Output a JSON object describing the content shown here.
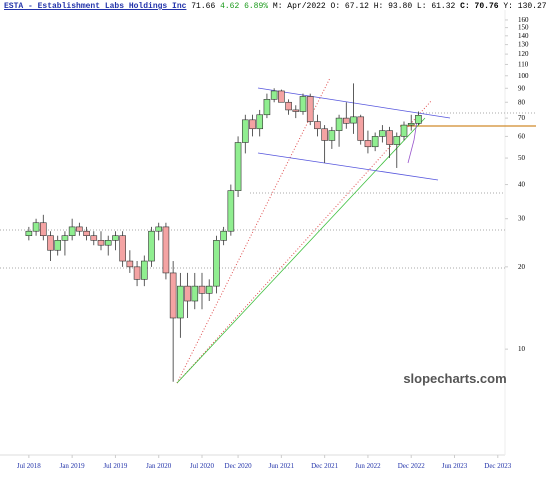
{
  "chart_data": {
    "type": "candlestick",
    "title": "ESTA - Establishment Labs Holdings Inc",
    "price": "71.66",
    "change": "4.62 6.89%",
    "ohlc": "M: Apr/2022 O: 67.12 H: 93.80 L: 61.32",
    "close_info": "C: 70.76",
    "year_info": "Y: 130.27",
    "watermark": "slopecharts.com",
    "log_scale": true,
    "up_color": "#90ee90",
    "down_color": "#f4a3a3",
    "x": [
      "2018-07",
      "2018-08",
      "2018-09",
      "2018-10",
      "2018-11",
      "2018-12",
      "2019-01",
      "2019-02",
      "2019-03",
      "2019-04",
      "2019-05",
      "2019-06",
      "2019-07",
      "2019-08",
      "2019-09",
      "2019-10",
      "2019-11",
      "2019-12",
      "2020-01",
      "2020-02",
      "2020-03",
      "2020-04",
      "2020-05",
      "2020-06",
      "2020-07",
      "2020-08",
      "2020-09",
      "2020-10",
      "2020-11",
      "2020-12",
      "2021-01",
      "2021-02",
      "2021-03",
      "2021-04",
      "2021-05",
      "2021-06",
      "2021-07",
      "2021-08",
      "2021-09",
      "2021-10",
      "2021-11",
      "2021-12",
      "2022-01",
      "2022-02",
      "2022-03",
      "2022-04",
      "2022-05",
      "2022-06",
      "2022-07",
      "2022-08",
      "2022-09",
      "2022-10",
      "2022-11",
      "2022-12",
      "2023-01"
    ],
    "open": [
      26,
      27,
      29,
      26,
      23,
      25,
      26,
      28,
      27,
      26,
      25,
      24,
      25,
      26,
      21,
      20,
      18,
      21,
      27,
      28,
      19,
      13,
      17,
      15,
      17,
      16,
      17,
      25,
      27,
      38,
      57,
      69,
      64,
      72,
      82,
      88,
      80,
      75,
      74,
      84,
      68,
      64,
      58,
      63,
      70,
      67.12,
      70.76,
      58,
      55,
      60,
      63,
      56,
      60,
      66,
      67
    ],
    "high": [
      28,
      30,
      31,
      27,
      26,
      27,
      30,
      29,
      28,
      27,
      27,
      26,
      27,
      27,
      23,
      21,
      22,
      28,
      29,
      29,
      21,
      19,
      19,
      19,
      19,
      18,
      26,
      28,
      40,
      60,
      72,
      72,
      75,
      86,
      90,
      89,
      82,
      78,
      86,
      86,
      72,
      66,
      65,
      72,
      80,
      93.8,
      72,
      63,
      62,
      66,
      65,
      62,
      68,
      72,
      74
    ],
    "low": [
      25,
      26,
      25,
      21,
      22,
      22,
      25,
      26,
      25,
      24,
      23,
      22,
      23,
      20,
      19,
      17,
      17,
      20,
      25,
      18,
      7.6,
      11,
      13,
      14,
      14,
      15,
      16,
      24,
      26,
      36,
      52,
      60,
      60,
      70,
      80,
      80,
      72,
      70,
      72,
      66,
      60,
      48,
      54,
      55,
      64,
      61.32,
      56,
      52,
      53,
      57,
      50,
      46,
      58,
      63,
      66
    ],
    "close": [
      27,
      29,
      26,
      23,
      25,
      26,
      28,
      27,
      26,
      25,
      24,
      25,
      26,
      21,
      20,
      18,
      21,
      27,
      28,
      19,
      13,
      17,
      15,
      17,
      16,
      17,
      25,
      27,
      38,
      57,
      69,
      64,
      72,
      82,
      88,
      80,
      75,
      74,
      84,
      68,
      64,
      58,
      63,
      70,
      67,
      70.76,
      58,
      55,
      60,
      63,
      56,
      60,
      66,
      67,
      71.66
    ],
    "xlim": [
      "2018-03",
      "2024-01"
    ],
    "xticks": [
      {
        "value": "2018-07",
        "label": "Jul 2018"
      },
      {
        "value": "2019-01",
        "label": "Jan 2019"
      },
      {
        "value": "2019-07",
        "label": "Jul 2019"
      },
      {
        "value": "2020-01",
        "label": "Jan 2020"
      },
      {
        "value": "2020-07",
        "label": "Jul 2020"
      },
      {
        "value": "2020-12",
        "label": "Dec 2020"
      },
      {
        "value": "2021-06",
        "label": "Jun 2021"
      },
      {
        "value": "2021-12",
        "label": "Dec 2021"
      },
      {
        "value": "2022-06",
        "label": "Jun 2022"
      },
      {
        "value": "2022-12",
        "label": "Dec 2022"
      },
      {
        "value": "2023-06",
        "label": "Jun 2023"
      },
      {
        "value": "2023-12",
        "label": "Dec 2023"
      }
    ],
    "ylim": [
      4.1,
      174
    ],
    "yticks": [
      10,
      20,
      30,
      40,
      50,
      60,
      70,
      80,
      90,
      100,
      110,
      120,
      130,
      140,
      150,
      160
    ]
  }
}
